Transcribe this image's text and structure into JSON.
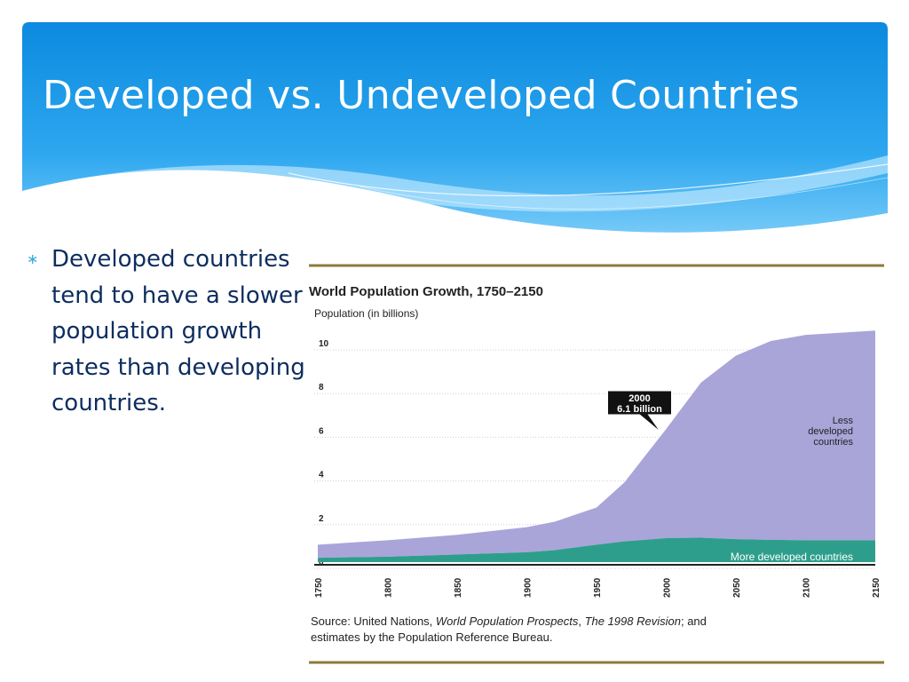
{
  "slide": {
    "title": "Developed vs. Undeveloped Countries",
    "bullet_text": "Developed countries tend to have a slower population growth rates than developing countries."
  },
  "colors": {
    "header_blue": "#0d8fe0",
    "header_light": "#6cc8f7",
    "less_developed": "#a9a5d9",
    "more_developed": "#2e9e8c",
    "rule": "#8b7a3a",
    "title_text": "#ffffff",
    "bullet_text": "#0d2d5e",
    "bullet_marker": "#3fa9dc"
  },
  "chart_data": {
    "type": "area",
    "title": "World Population Growth, 1750–2150",
    "ylabel": "Population (in billions)",
    "xlabel": "",
    "ylim": [
      0,
      10
    ],
    "xlim": [
      1750,
      2150
    ],
    "yticks": [
      "0",
      "2",
      "4",
      "6",
      "8",
      "10"
    ],
    "xticks": [
      "1750",
      "1800",
      "1850",
      "1900",
      "1950",
      "2000",
      "2050",
      "2100",
      "2150"
    ],
    "grid": true,
    "x": [
      1750,
      1800,
      1850,
      1900,
      1920,
      1950,
      1970,
      2000,
      2025,
      2050,
      2075,
      2100,
      2150
    ],
    "series": [
      {
        "name": "More developed countries",
        "values": [
          0.2,
          0.25,
          0.35,
          0.45,
          0.55,
          0.8,
          0.95,
          1.1,
          1.12,
          1.05,
          1.02,
          1.0,
          1.0
        ]
      },
      {
        "name": "Less developed countries",
        "values": [
          0.6,
          0.75,
          0.9,
          1.15,
          1.3,
          1.7,
          2.7,
          5.0,
          7.1,
          8.4,
          9.1,
          9.4,
          9.6
        ]
      }
    ],
    "annotation": {
      "x": 2000,
      "line1": "2000",
      "line2": "6.1 billion"
    },
    "labels": {
      "less": [
        "Less",
        "developed",
        "countries"
      ],
      "more": "More developed countries"
    },
    "source": {
      "prefix": "Source: United Nations, ",
      "italic1": "World Population Prospects",
      "sep": ", ",
      "italic2": "The 1998 Revision",
      "suffix": "; and",
      "line2": "estimates by the Population Reference Bureau."
    }
  }
}
